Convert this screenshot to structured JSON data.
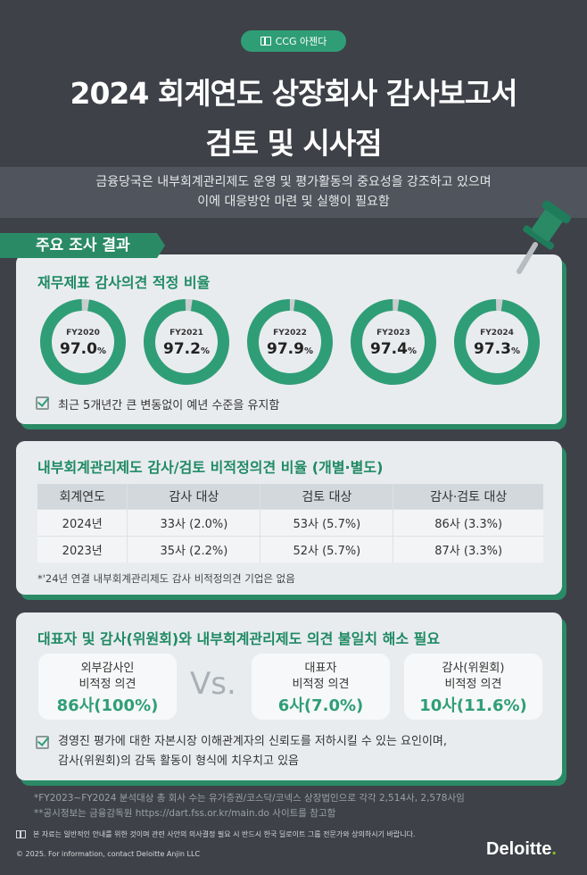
{
  "badge": {
    "label": "CCG 아젠다",
    "icon": "book-icon"
  },
  "title": {
    "line1": "2024 회계연도 상장회사 감사보고서",
    "line2": "검토 및 시사점"
  },
  "subtitle": {
    "line1": "금융당국은 내부회계관리제도 운영 및 평가활동의 중요성을 강조하고 있으며",
    "line2": "이에 대응방안 마련 및 실행이 필요함"
  },
  "section_tab": "주요 조사 결과",
  "card1": {
    "heading": "재무제표 감사의견 적정 비율",
    "note": "최근 5개년간 큰 변동없이 예년 수준을 유지함"
  },
  "chart_data": {
    "type": "pie",
    "categories": [
      "FY2020",
      "FY2021",
      "FY2022",
      "FY2023",
      "FY2024"
    ],
    "values": [
      97.0,
      97.2,
      97.9,
      97.4,
      97.3
    ],
    "value_labels": [
      "97.0",
      "97.2",
      "97.9",
      "97.4",
      "97.3"
    ],
    "unit": "%",
    "colors": {
      "fill": "#2f9e76",
      "remainder": "#c9cdd0"
    }
  },
  "card2": {
    "heading": "내부회계관리제도 감사/검토 비적정의견 비율 (개별·별도)",
    "headers": [
      "회계연도",
      "감사 대상",
      "검토 대상",
      "감사·검토 대상"
    ],
    "rows": [
      [
        "2024년",
        "33사 (2.0%)",
        "53사 (5.7%)",
        "86사 (3.3%)"
      ],
      [
        "2023년",
        "35사 (2.2%)",
        "52사 (5.7%)",
        "87사 (3.3%)"
      ]
    ],
    "note": "*'24년 연결 내부회계관리제도 감사 비적정의견 기업은 없음"
  },
  "card3": {
    "heading": "대표자 및 감사(위원회)와 내부회계관리제도 의견 불일치 해소 필요",
    "boxes": [
      {
        "l1": "외부감사인",
        "l2": "비적정 의견",
        "v": "86사(100%)"
      },
      {
        "l1": "대표자",
        "l2": "비적정 의견",
        "v": "6사(7.0%)"
      },
      {
        "l1": "감사(위원회)",
        "l2": "비적정 의견",
        "v": "10사(11.6%)"
      }
    ],
    "vs": "Vs.",
    "note1": "경영진 평가에 대한 자본시장 이해관계자의 신뢰도를 저하시킬 수 있는 요인이며,",
    "note2": "감사(위원회)의 감독 활동이 형식에 치우치고 있음"
  },
  "footnotes": [
    "*FY2023~FY2024 분석대상 총 회사 수는 유가증권/코스닥/코넥스 상장법인으로 각각 2,514사, 2,578사임",
    "**공시정보는 금융감독원 https://dart.fss.or.kr/main.do 사이트를 참고함"
  ],
  "disclaimer": "본 자료는 일반적인 안내를 위한 것이며 관련 사안의 의사결정 필요 시 반드시 한국 딜로이트 그룹 전문가와 상의하시기 바랍니다.",
  "copyright": "© 2025. For information, contact Deloitte Anjin LLC",
  "logo": "Deloitte",
  "colors": {
    "accent": "#2f9e76",
    "background": "#3e4148"
  }
}
